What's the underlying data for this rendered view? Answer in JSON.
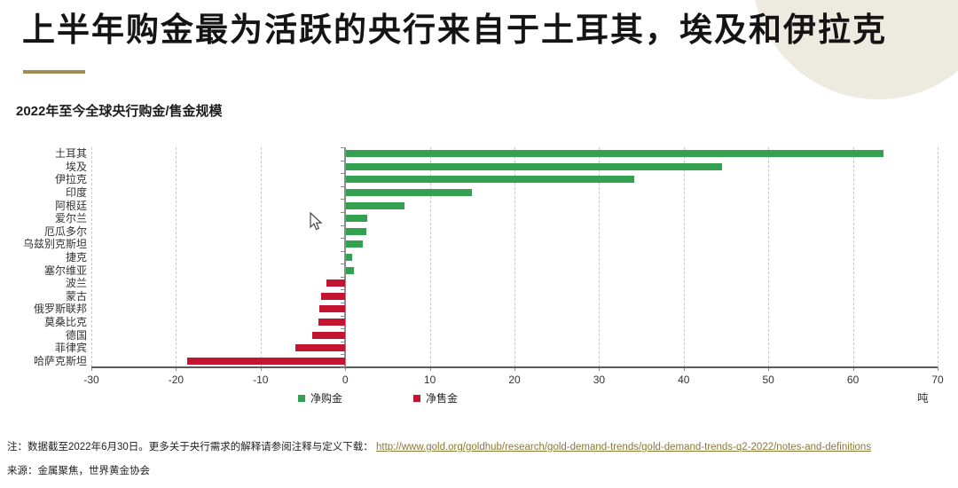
{
  "header": {
    "title": "上半年购金最为活跃的央行来自于土耳其，埃及和伊拉克"
  },
  "chart": {
    "title": "2022年至今全球央行购金/售金规模"
  },
  "chart_data": {
    "type": "bar",
    "orientation": "horizontal",
    "title": "2022年至今全球央行购金/售金规模",
    "unit": "吨",
    "categories": [
      "土耳其",
      "埃及",
      "伊拉克",
      "印度",
      "阿根廷",
      "爱尔兰",
      "厄瓜多尔",
      "乌兹别克斯坦",
      "捷克",
      "塞尔维亚",
      "波兰",
      "蒙古",
      "俄罗斯联邦",
      "莫桑比克",
      "德国",
      "菲律宾",
      "哈萨克斯坦"
    ],
    "values": [
      63.5,
      44.4,
      34.0,
      14.9,
      6.9,
      2.5,
      2.4,
      2.0,
      0.7,
      0.9,
      -2.2,
      -2.9,
      -3.1,
      -3.2,
      -3.9,
      -5.9,
      -18.7
    ],
    "xlim": [
      -30,
      70
    ],
    "xticks": [
      -30,
      -20,
      -10,
      0,
      10,
      20,
      30,
      40,
      50,
      60,
      70
    ],
    "grid": "vertical-dashed",
    "legend_position": "bottom",
    "legend": [
      {
        "label": "净购金",
        "color": "#33a052"
      },
      {
        "label": "净售金",
        "color": "#c31432"
      }
    ],
    "positive_color": "#33a052",
    "negative_color": "#c31432"
  },
  "footer": {
    "note_prefix": "注：数据截至2022年6月30日。更多关于央行需求的解释请参阅注释与定义下载：",
    "note_link": "http://www.gold.org/goldhub/research/gold-demand-trends/gold-demand-trends-q2-2022/notes-and-definitions",
    "source": "来源：金属聚焦，世界黄金协会"
  },
  "colors": {
    "accent_gold": "#a18b50",
    "decorative_circle": "#edeadf",
    "grid": "#c9c9c9",
    "axis": "#5a5a5a"
  }
}
